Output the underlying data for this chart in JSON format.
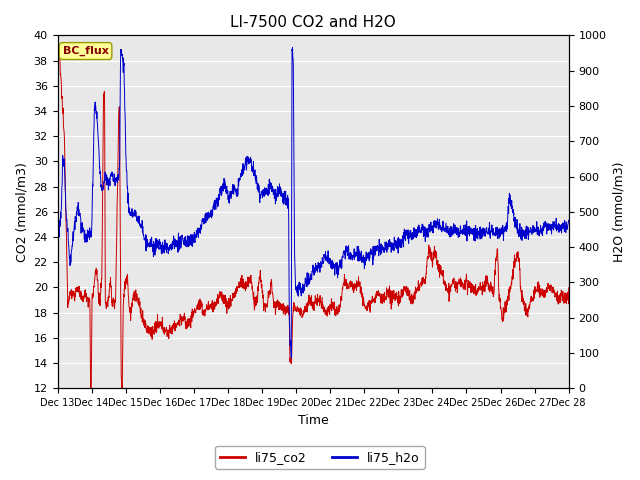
{
  "title": "LI-7500 CO2 and H2O",
  "xlabel": "Time",
  "ylabel_left": "CO2 (mmol/m3)",
  "ylabel_right": "H2O (mmol/m3)",
  "ylim_left": [
    12,
    40
  ],
  "ylim_right": [
    0,
    1000
  ],
  "yticks_left": [
    12,
    14,
    16,
    18,
    20,
    22,
    24,
    26,
    28,
    30,
    32,
    34,
    36,
    38,
    40
  ],
  "yticks_right": [
    0,
    100,
    200,
    300,
    400,
    500,
    600,
    700,
    800,
    900,
    1000
  ],
  "color_co2": "#cc0000",
  "color_h2o": "#0000cc",
  "background_color": "#e8e8e8",
  "legend_label_co2": "li75_co2",
  "legend_label_h2o": "li75_h2o",
  "annotation_text": "BC_flux",
  "title_fontsize": 11,
  "axis_fontsize": 9,
  "tick_fontsize": 8,
  "num_points": 2000,
  "x_start": 13.0,
  "x_end": 28.0,
  "xtick_positions": [
    13,
    14,
    15,
    16,
    17,
    18,
    19,
    20,
    21,
    22,
    23,
    24,
    25,
    26,
    27,
    28
  ],
  "xtick_labels": [
    "Dec 13",
    "Dec 14",
    "Dec 15",
    "Dec 16",
    "Dec 17",
    "Dec 18",
    "Dec 19",
    "Dec 20",
    "Dec 21",
    "Dec 22",
    "Dec 23",
    "Dec 24",
    "Dec 25",
    "Dec 26",
    "Dec 27",
    "Dec 28"
  ]
}
